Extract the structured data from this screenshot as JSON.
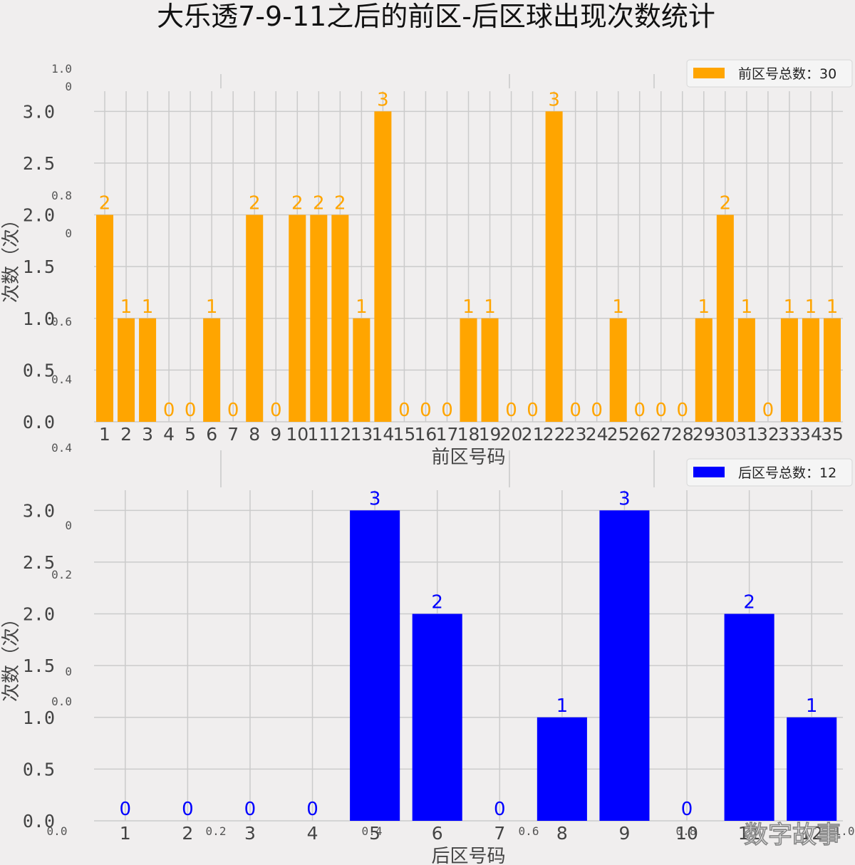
{
  "title": "大乐透7-9-11之后的前区-后区球出现次数统计",
  "watermark": "数字故事",
  "chart_data": [
    {
      "type": "bar",
      "id": "front",
      "color": "#ffa500",
      "categories": [
        "1",
        "2",
        "3",
        "4",
        "5",
        "6",
        "7",
        "8",
        "9",
        "10",
        "11",
        "12",
        "13",
        "14",
        "15",
        "16",
        "17",
        "18",
        "19",
        "20",
        "21",
        "22",
        "23",
        "24",
        "25",
        "26",
        "27",
        "28",
        "29",
        "30",
        "31",
        "32",
        "33",
        "34",
        "35"
      ],
      "series": [
        {
          "name": "前区号总数：30",
          "values": [
            2,
            1,
            1,
            0,
            0,
            1,
            0,
            2,
            0,
            2,
            2,
            2,
            1,
            3,
            0,
            0,
            0,
            1,
            1,
            0,
            0,
            3,
            0,
            0,
            1,
            0,
            0,
            0,
            1,
            2,
            1,
            0,
            1,
            1,
            1
          ]
        }
      ],
      "xlabel": "前区号码",
      "ylabel": "次数（次）",
      "ylim": [
        0,
        3
      ],
      "yticks": [
        "0.0",
        "0.5",
        "1.0",
        "1.5",
        "2.0",
        "2.5",
        "3.0"
      ],
      "grid": true,
      "legend": "top-right"
    },
    {
      "type": "bar",
      "id": "back",
      "color": "#0000ff",
      "categories": [
        "1",
        "2",
        "3",
        "4",
        "5",
        "6",
        "7",
        "8",
        "9",
        "10",
        "11",
        "12"
      ],
      "series": [
        {
          "name": "后区号总数：12",
          "values": [
            0,
            0,
            0,
            0,
            3,
            2,
            0,
            1,
            3,
            0,
            2,
            1
          ]
        }
      ],
      "xlabel": "后区号码",
      "ylabel": "次数（次）",
      "ylim": [
        0,
        3
      ],
      "yticks": [
        "0.0",
        "0.5",
        "1.0",
        "1.5",
        "2.0",
        "2.5",
        "3.0"
      ],
      "grid": true,
      "legend": "top-right"
    }
  ],
  "background_axes": {
    "ylabels": [
      "1.0",
      "0",
      "0.8",
      "0",
      "0.6",
      "0.4",
      "0.4",
      "0",
      "0.2",
      "0",
      "0.0"
    ],
    "xlabels": [
      "0.0",
      "0.2",
      "0.4",
      "0.6",
      "0.8",
      "1.0"
    ]
  }
}
